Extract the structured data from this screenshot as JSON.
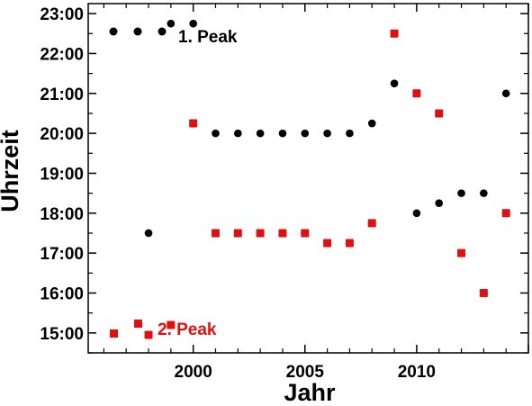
{
  "chart_data": {
    "type": "scatter",
    "title": "",
    "xlabel": "Jahr",
    "ylabel": "Uhrzeit",
    "xlim": [
      1995.3,
      2015.0
    ],
    "ylim": [
      14.5,
      23.25
    ],
    "x_ticks": [
      2000,
      2005,
      2010
    ],
    "y_ticks": [
      {
        "value": 15,
        "label": "15:00"
      },
      {
        "value": 16,
        "label": "16:00"
      },
      {
        "value": 17,
        "label": "17:00"
      },
      {
        "value": 18,
        "label": "18:00"
      },
      {
        "value": 19,
        "label": "19:00"
      },
      {
        "value": 20,
        "label": "20:00"
      },
      {
        "value": 21,
        "label": "21:00"
      },
      {
        "value": 22,
        "label": "22:00"
      },
      {
        "value": 23,
        "label": "23:00"
      }
    ],
    "grid": false,
    "legend_position": "inside plot: top-left and bottom-left",
    "series": [
      {
        "name": "1. Peak",
        "color": "#000000",
        "marker": "circle",
        "points": [
          [
            1998,
            17.5
          ],
          [
            1999,
            22.75
          ],
          [
            2000,
            22.75
          ],
          [
            2001,
            20.0
          ],
          [
            2002,
            20.0
          ],
          [
            2003,
            20.0
          ],
          [
            2004,
            20.0
          ],
          [
            2005,
            20.0
          ],
          [
            2006,
            20.0
          ],
          [
            2007,
            20.0
          ],
          [
            2008,
            20.25
          ],
          [
            2009,
            21.25
          ],
          [
            2010,
            18.0
          ],
          [
            2011,
            18.25
          ],
          [
            2012,
            18.5
          ],
          [
            2013,
            18.5
          ],
          [
            2014,
            21.0
          ]
        ]
      },
      {
        "name": "2. Peak",
        "color": "#e01010",
        "marker": "square",
        "points": [
          [
            1998,
            14.95
          ],
          [
            1999,
            15.2
          ],
          [
            2000,
            20.25
          ],
          [
            2001,
            17.5
          ],
          [
            2002,
            17.5
          ],
          [
            2003,
            17.5
          ],
          [
            2004,
            17.5
          ],
          [
            2005,
            17.5
          ],
          [
            2006,
            17.25
          ],
          [
            2007,
            17.25
          ],
          [
            2008,
            17.75
          ],
          [
            2009,
            22.5
          ],
          [
            2010,
            21.0
          ],
          [
            2011,
            20.5
          ],
          [
            2012,
            17.0
          ],
          [
            2013,
            16.0
          ],
          [
            2014,
            18.0
          ]
        ]
      }
    ]
  }
}
